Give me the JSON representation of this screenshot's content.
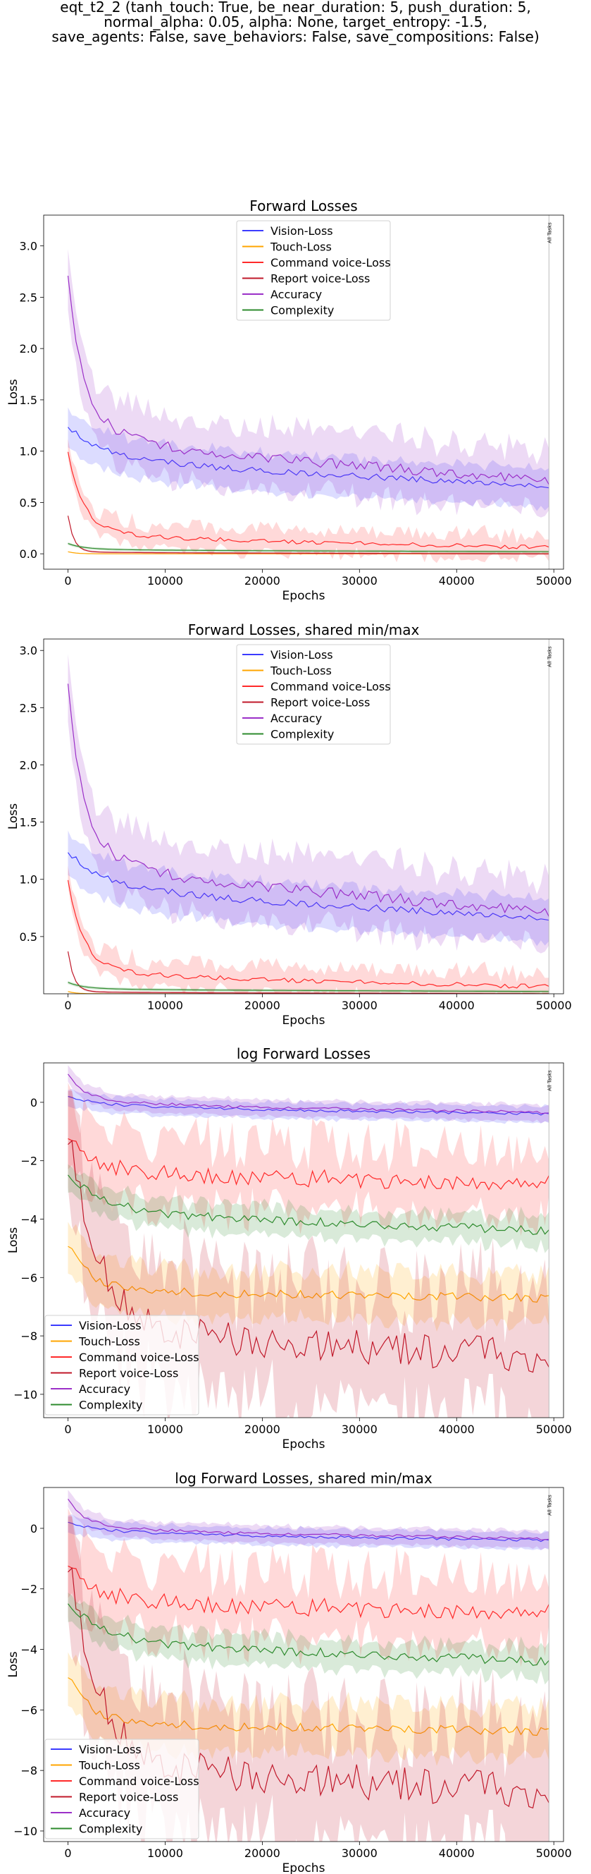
{
  "suptitle_lines": [
    "eqt_t2_2 (tanh_touch: True, be_near_duration: 5, push_duration: 5,",
    "normal_alpha: 0.05, alpha: None, target_entropy: -1.5,",
    "save_agents: False, save_behaviors: False, save_compositions: False)"
  ],
  "colors": {
    "vision": "#3b3bff",
    "touch": "#ffa500",
    "command": "#ff2a2a",
    "report": "#c0182a",
    "accuracy": "#9b30c8",
    "complexity": "#2e8b2e",
    "frame": "#000000"
  },
  "chart_data": [
    {
      "type": "line",
      "title": "Forward Losses",
      "xlabel": "Epochs",
      "ylabel": "Loss",
      "xlim": [
        -2500,
        51000
      ],
      "ylim": [
        -0.15,
        3.3
      ],
      "xticks": [
        0,
        10000,
        20000,
        30000,
        40000,
        50000
      ],
      "yticks": [
        0.0,
        0.5,
        1.0,
        1.5,
        2.0,
        2.5,
        3.0
      ],
      "ytick_labels": [
        "0.0",
        "0.5",
        "1.0",
        "1.5",
        "2.0",
        "2.5",
        "3.0"
      ],
      "legend_position": "top-center",
      "marker_x": 49500,
      "marker_label": "All Tasks",
      "series": [
        {
          "name": "Vision-Loss",
          "key": "vision",
          "start": 1.25,
          "end": 0.66,
          "knee": 1.1,
          "decay": 2000,
          "lin_drop": 0.0,
          "band": 0.17,
          "band_var": 0.06,
          "noise": 0.03
        },
        {
          "name": "Touch-Loss",
          "key": "touch",
          "start": 0.02,
          "end": 0.0,
          "knee": 0.0,
          "decay": 800,
          "lin_drop": 0.0,
          "band": 0.005,
          "band_var": 0.0,
          "noise": 0.0
        },
        {
          "name": "Command voice-Loss",
          "key": "command",
          "start": 1.0,
          "end": 0.06,
          "knee": 0.25,
          "decay": 1500,
          "lin_drop": 0.0,
          "band": 0.05,
          "band_var": 0.12,
          "noise": 0.02
        },
        {
          "name": "Report voice-Loss",
          "key": "report",
          "start": 0.37,
          "end": 0.0,
          "knee": 0.02,
          "decay": 600,
          "lin_drop": 0.0,
          "band": 0.01,
          "band_var": 0.0,
          "noise": 0.0
        },
        {
          "name": "Accuracy",
          "key": "accuracy",
          "start": 2.72,
          "end": 0.72,
          "knee": 1.35,
          "decay": 1500,
          "lin_drop": 0.0,
          "band": 0.2,
          "band_var": 0.2,
          "noise": 0.05
        },
        {
          "name": "Complexity",
          "key": "complexity",
          "start": 0.1,
          "end": 0.02,
          "knee": 0.05,
          "decay": 1500,
          "lin_drop": 0.0,
          "band": 0.015,
          "band_var": 0.0,
          "noise": 0.0
        }
      ]
    },
    {
      "type": "line",
      "title": "Forward Losses, shared min/max",
      "xlabel": "Epochs",
      "ylabel": "Loss",
      "xlim": [
        -2500,
        51000
      ],
      "ylim": [
        0.0,
        3.1
      ],
      "xticks": [
        0,
        10000,
        20000,
        30000,
        40000,
        50000
      ],
      "yticks": [
        0.5,
        1.0,
        1.5,
        2.0,
        2.5,
        3.0
      ],
      "ytick_labels": [
        "0.5",
        "1.0",
        "1.5",
        "2.0",
        "2.5",
        "3.0"
      ],
      "legend_position": "top-center",
      "marker_x": 49500,
      "marker_label": "All Tasks",
      "series": [
        {
          "name": "Vision-Loss",
          "key": "vision",
          "start": 1.25,
          "end": 0.66,
          "knee": 1.1,
          "decay": 2000,
          "lin_drop": 0.0,
          "band": 0.17,
          "band_var": 0.06,
          "noise": 0.03
        },
        {
          "name": "Touch-Loss",
          "key": "touch",
          "start": 0.02,
          "end": 0.0,
          "knee": 0.0,
          "decay": 800,
          "lin_drop": 0.0,
          "band": 0.005,
          "band_var": 0.0,
          "noise": 0.0
        },
        {
          "name": "Command voice-Loss",
          "key": "command",
          "start": 1.0,
          "end": 0.06,
          "knee": 0.25,
          "decay": 1500,
          "lin_drop": 0.0,
          "band": 0.05,
          "band_var": 0.12,
          "noise": 0.02
        },
        {
          "name": "Report voice-Loss",
          "key": "report",
          "start": 0.37,
          "end": 0.0,
          "knee": 0.02,
          "decay": 600,
          "lin_drop": 0.0,
          "band": 0.01,
          "band_var": 0.0,
          "noise": 0.0
        },
        {
          "name": "Accuracy",
          "key": "accuracy",
          "start": 2.72,
          "end": 0.72,
          "knee": 1.35,
          "decay": 1500,
          "lin_drop": 0.0,
          "band": 0.2,
          "band_var": 0.2,
          "noise": 0.05
        },
        {
          "name": "Complexity",
          "key": "complexity",
          "start": 0.1,
          "end": 0.02,
          "knee": 0.05,
          "decay": 1500,
          "lin_drop": 0.0,
          "band": 0.015,
          "band_var": 0.0,
          "noise": 0.0
        }
      ]
    },
    {
      "type": "line",
      "title": "log Forward Losses",
      "xlabel": "Epochs",
      "ylabel": "Loss",
      "xlim": [
        -2500,
        51000
      ],
      "ylim": [
        -10.8,
        1.35
      ],
      "xticks": [
        0,
        10000,
        20000,
        30000,
        40000,
        50000
      ],
      "yticks": [
        -10,
        -8,
        -6,
        -4,
        -2,
        0
      ],
      "ytick_labels": [
        "−10",
        "−8",
        "−6",
        "−4",
        "−2",
        "0"
      ],
      "legend_position": "bottom-left",
      "marker_x": 49500,
      "marker_label": "All Tasks",
      "series": [
        {
          "name": "Vision-Loss",
          "key": "vision",
          "start": 0.25,
          "end": -0.4,
          "knee": 0.05,
          "decay": 2000,
          "lin_drop": 0.0,
          "band": 0.25,
          "band_var": 0.1,
          "noise": 0.05
        },
        {
          "name": "Touch-Loss",
          "key": "touch",
          "start": -4.8,
          "end": -6.7,
          "knee": -6.3,
          "decay": 2000,
          "lin_drop": 0.0,
          "band": 0.6,
          "band_var": 0.5,
          "noise": 0.15
        },
        {
          "name": "Command voice-Loss",
          "key": "command",
          "start": -1.0,
          "end": -2.8,
          "knee": -2.1,
          "decay": 2000,
          "lin_drop": 0.0,
          "band": 0.5,
          "band_var": 1.2,
          "noise": 0.3
        },
        {
          "name": "Report voice-Loss",
          "key": "report",
          "start": -1.0,
          "end": -8.7,
          "knee": -7.3,
          "decay": 3000,
          "lin_drop": 0.0,
          "band": 0.9,
          "band_var": 2.2,
          "noise": 0.6
        },
        {
          "name": "Accuracy",
          "key": "accuracy",
          "start": 1.0,
          "end": -0.35,
          "knee": 0.2,
          "decay": 1500,
          "lin_drop": 0.0,
          "band": 0.25,
          "band_var": 0.1,
          "noise": 0.05
        },
        {
          "name": "Complexity",
          "key": "complexity",
          "start": -2.4,
          "end": -4.4,
          "knee": -3.3,
          "decay": 3000,
          "lin_drop": 0.0,
          "band": 0.35,
          "band_var": 0.3,
          "noise": 0.15
        }
      ]
    },
    {
      "type": "line",
      "title": "log Forward Losses, shared min/max",
      "xlabel": "Epochs",
      "ylabel": "Loss",
      "xlim": [
        -2500,
        51000
      ],
      "ylim": [
        -10.35,
        1.35
      ],
      "xticks": [
        0,
        10000,
        20000,
        30000,
        40000,
        50000
      ],
      "yticks": [
        -10,
        -8,
        -6,
        -4,
        -2,
        0
      ],
      "ytick_labels": [
        "−10",
        "−8",
        "−6",
        "−4",
        "−2",
        "0"
      ],
      "legend_position": "bottom-left",
      "marker_x": 49500,
      "marker_label": "All Tasks",
      "series": [
        {
          "name": "Vision-Loss",
          "key": "vision",
          "start": 0.25,
          "end": -0.4,
          "knee": 0.05,
          "decay": 2000,
          "lin_drop": 0.0,
          "band": 0.25,
          "band_var": 0.1,
          "noise": 0.05
        },
        {
          "name": "Touch-Loss",
          "key": "touch",
          "start": -4.8,
          "end": -6.7,
          "knee": -6.3,
          "decay": 2000,
          "lin_drop": 0.0,
          "band": 0.6,
          "band_var": 0.5,
          "noise": 0.15
        },
        {
          "name": "Command voice-Loss",
          "key": "command",
          "start": -1.0,
          "end": -2.8,
          "knee": -2.1,
          "decay": 2000,
          "lin_drop": 0.0,
          "band": 0.5,
          "band_var": 1.2,
          "noise": 0.3
        },
        {
          "name": "Report voice-Loss",
          "key": "report",
          "start": -1.0,
          "end": -8.7,
          "knee": -7.3,
          "decay": 3000,
          "lin_drop": 0.0,
          "band": 0.9,
          "band_var": 2.2,
          "noise": 0.6
        },
        {
          "name": "Accuracy",
          "key": "accuracy",
          "start": 1.0,
          "end": -0.35,
          "knee": 0.2,
          "decay": 1500,
          "lin_drop": 0.0,
          "band": 0.25,
          "band_var": 0.1,
          "noise": 0.05
        },
        {
          "name": "Complexity",
          "key": "complexity",
          "start": -2.4,
          "end": -4.4,
          "knee": -3.3,
          "decay": 3000,
          "lin_drop": 0.0,
          "band": 0.35,
          "band_var": 0.3,
          "noise": 0.15
        }
      ]
    }
  ]
}
